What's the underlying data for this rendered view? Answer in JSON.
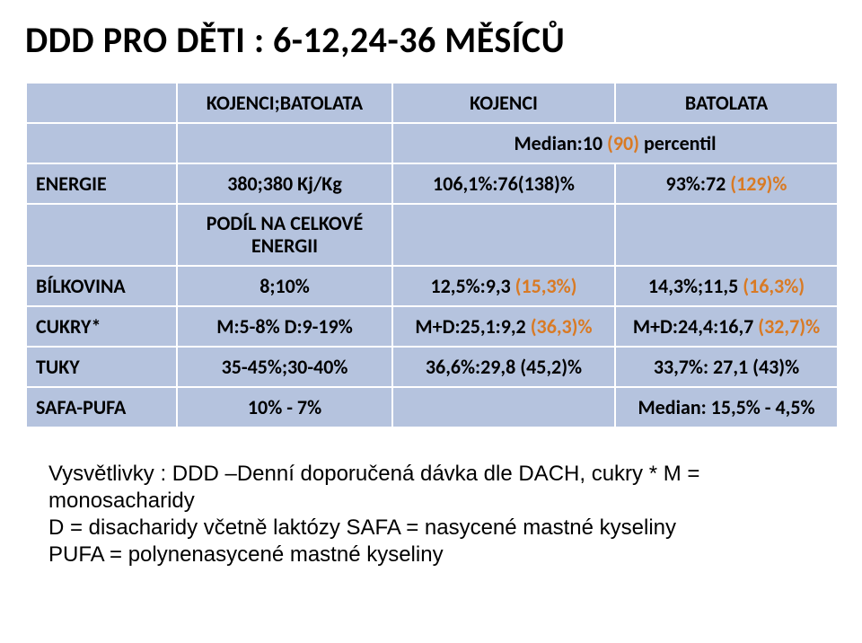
{
  "title": "DDD PRO DĚTI : 6-12,24-36 MĚSÍCŮ",
  "table": {
    "colors": {
      "cell_bg": "#b5c3de",
      "cell_border": "#ffffff",
      "text": "#000000",
      "accent": "#d97a24"
    },
    "header": {
      "col1": "KOJENCI;BATOLATA",
      "col2": "KOJENCI",
      "col3": "BATOLATA"
    },
    "subheader": {
      "col23": "Median:10 ",
      "col23_accent": "(90)",
      "col23_tail": " percentil"
    },
    "rows": [
      {
        "label": "ENERGIE",
        "c1": "380;380 Kj/Kg",
        "c2": "106,1%:76(138)%",
        "c3_a": "93%:72 ",
        "c3_accent": "(129)%"
      },
      {
        "label": "",
        "c1_line1": "PODÍL NA  CELKOVÉ",
        "c1_line2": "ENERGII",
        "c2": "",
        "c3": ""
      },
      {
        "label": "BÍLKOVINA",
        "c1": "8;10%",
        "c2_a": "12,5%:9,3 ",
        "c2_accent": "(15,3%)",
        "c3_a": "14,3%;11,5 ",
        "c3_accent": "(16,3%)"
      },
      {
        "label": "CUKRY*",
        "c1": "M:5-8% D:9-19%",
        "c2_a": "M+D:25,1:9,2 ",
        "c2_accent": "(36,3)%",
        "c3_a": "M+D:24,4:16,7 ",
        "c3_accent": "(32,7)%"
      },
      {
        "label": "TUKY",
        "c1": "35-45%;30-40%",
        "c2": "36,6%:29,8 (45,2)%",
        "c3": "33,7%: 27,1 (43)%"
      },
      {
        "label": "SAFA-PUFA",
        "c1": "10% - 7%",
        "c2": "",
        "c3": "Median:  15,5%  - 4,5%"
      }
    ]
  },
  "notes": {
    "line1": "Vysvětlivky : DDD –Denní doporučená dávka dle DACH, cukry * M = monosacharidy",
    "line2": "D = disacharidy včetně laktózy SAFA = nasycené mastné kyseliny",
    "line3": "PUFA = polynenasycené mastné kyseliny"
  }
}
